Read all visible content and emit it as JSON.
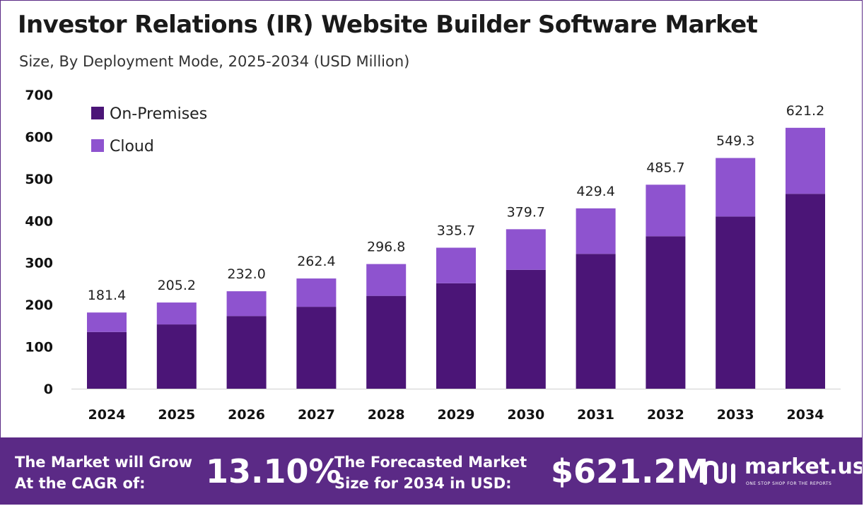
{
  "chart_data": {
    "type": "bar",
    "stacked": true,
    "title": "Investor Relations (IR) Website Builder Software Market",
    "subtitle": "Size, By Deployment Mode, 2025-2034 (USD Million)",
    "categories": [
      "2024",
      "2025",
      "2026",
      "2027",
      "2028",
      "2029",
      "2030",
      "2031",
      "2032",
      "2033",
      "2034"
    ],
    "series": [
      {
        "name": "On-Premises",
        "color": "#4b1577",
        "values": [
          135.0,
          153.0,
          173.0,
          195.0,
          221.0,
          251.0,
          283.0,
          321.0,
          363.0,
          410.0,
          464.0
        ]
      },
      {
        "name": "Cloud",
        "color": "#8e53cf",
        "values": [
          46.4,
          52.2,
          59.0,
          67.4,
          75.8,
          84.7,
          96.7,
          108.4,
          122.7,
          139.3,
          157.2
        ]
      }
    ],
    "totals": [
      "181.4",
      "205.2",
      "232.0",
      "262.4",
      "296.8",
      "335.7",
      "379.7",
      "429.4",
      "485.7",
      "549.3",
      "621.2"
    ],
    "ylim": [
      0,
      700
    ],
    "yticks": [
      "0",
      "100",
      "200",
      "300",
      "400",
      "500",
      "600",
      "700"
    ],
    "legend_position": "top-left",
    "grid": false
  },
  "footer": {
    "cagr_line1": "The Market will Grow",
    "cagr_line2": "At the CAGR of:",
    "cagr_value": "13.10%",
    "forecast_line1": "The Forecasted Market",
    "forecast_line2": "Size for 2034 in USD:",
    "forecast_value": "$621.2M",
    "brand_name": "market.us",
    "brand_tagline": "ONE STOP SHOP FOR THE REPORTS",
    "brand_icon": "market-us-logo-icon",
    "background_color": "#5b2a86"
  }
}
